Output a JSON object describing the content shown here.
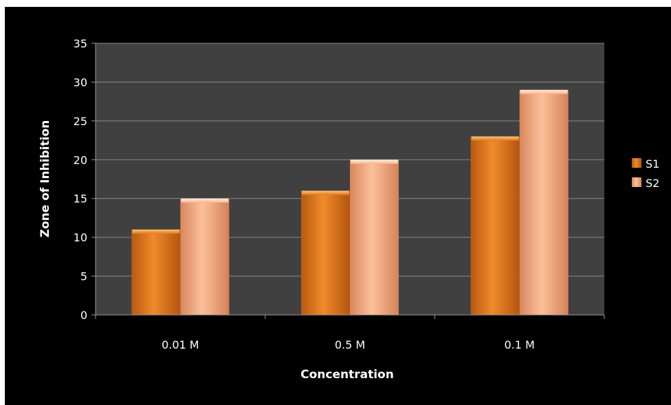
{
  "chart_data": {
    "type": "bar",
    "title": "",
    "xlabel": "Concentration",
    "ylabel": "Zone of Inhibition",
    "categories": [
      "0.01 M",
      "0.5 M",
      "0.1 M"
    ],
    "series": [
      {
        "name": "S1",
        "values": [
          11,
          16,
          23
        ],
        "color": "#e07a1f"
      },
      {
        "name": "S2",
        "values": [
          15,
          20,
          29
        ],
        "color": "#f5a77a"
      }
    ],
    "ylim": [
      0,
      35
    ],
    "yticks": [
      0,
      5,
      10,
      15,
      20,
      25,
      30,
      35
    ],
    "grid": true,
    "legend_position": "right",
    "plot_background": "#404040",
    "chart_background": "#000000"
  }
}
